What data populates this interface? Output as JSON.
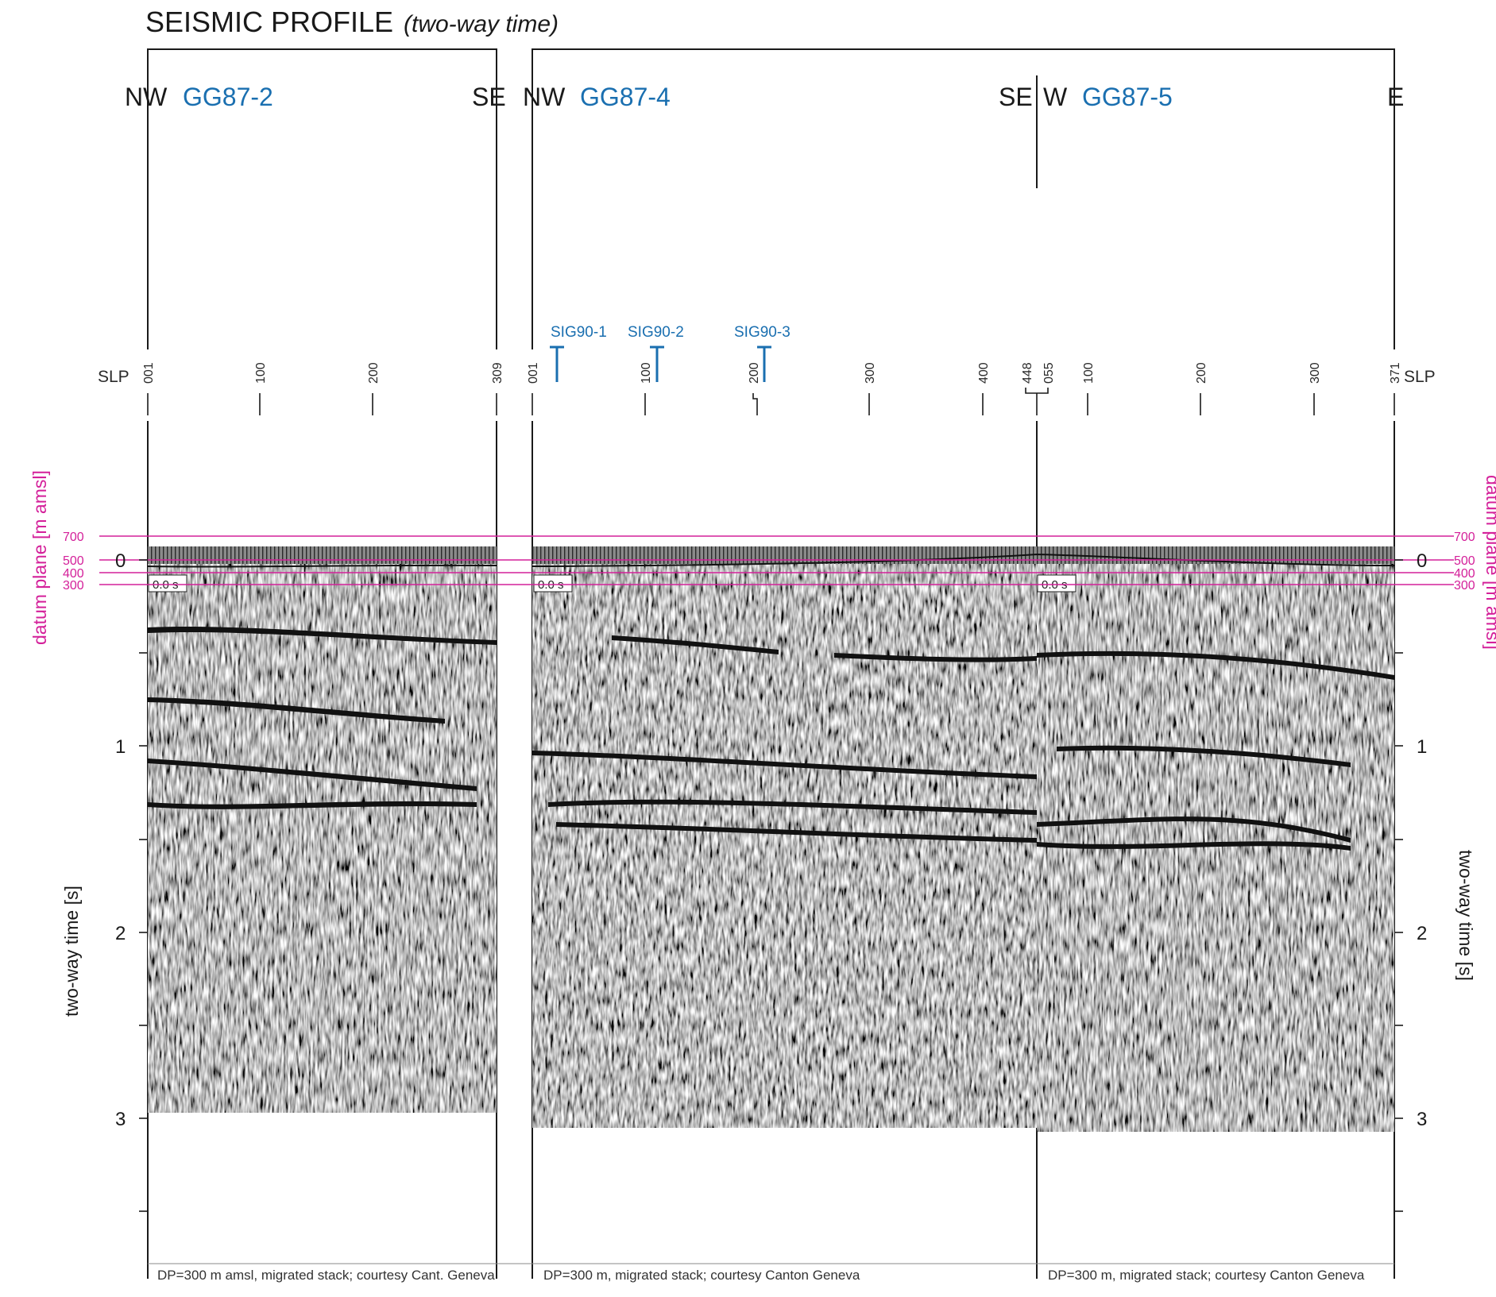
{
  "title": {
    "main": "SEISMIC PROFILE",
    "sub": "(two-way time)"
  },
  "profiles": [
    {
      "name": "GG87-2",
      "left_dir": "NW",
      "right_dir": "SE",
      "slp_start": "001",
      "slp_end": "309",
      "ticks": [
        "100",
        "200"
      ],
      "credit": "DP=300 m amsl, migrated stack; courtesy Cant. Geneva",
      "zero_label": "0.0 s"
    },
    {
      "name": "GG87-4",
      "left_dir": "NW",
      "right_dir": "SE",
      "slp_start": "001",
      "slp_end": "448",
      "ticks": [
        "100",
        "200",
        "300",
        "400"
      ],
      "credit": "DP=300 m, migrated stack; courtesy Canton Geneva",
      "zero_label": "0.0 s"
    },
    {
      "name": "GG87-5",
      "left_dir": "W",
      "right_dir": "E",
      "slp_start": "055",
      "slp_end": "371",
      "ticks": [
        "100",
        "200",
        "300"
      ],
      "credit": "DP=300 m, migrated stack; courtesy Canton Geneva",
      "zero_label": "0.0 s"
    }
  ],
  "wells": [
    "SIG90-1",
    "SIG90-2",
    "SIG90-3"
  ],
  "slp_label": "SLP",
  "time_axis": {
    "title": "two-way time [s]",
    "labels": [
      "0",
      "1",
      "2",
      "3"
    ]
  },
  "datum_axis": {
    "title": "datum plane [m amsl]",
    "labels": [
      "700",
      "500",
      "400",
      "300"
    ]
  },
  "colors": {
    "datum": "#d4209a",
    "profile_name": "#1a6fb0",
    "line": "#1a1a1a"
  }
}
